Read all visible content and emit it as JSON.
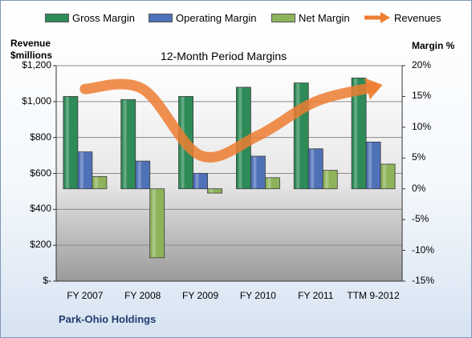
{
  "legend": [
    {
      "label": "Gross Margin",
      "color": "#2e8b57",
      "kind": "bar"
    },
    {
      "label": "Operating Margin",
      "color": "#4f71b8",
      "kind": "bar"
    },
    {
      "label": "Net Margin",
      "color": "#8eb35a",
      "kind": "bar"
    },
    {
      "label": "Revenues",
      "color": "#ed7d31",
      "kind": "arrow"
    }
  ],
  "chart_data": {
    "type": "bar",
    "title": "12-Month Period Margins",
    "left_axis": {
      "title_line1": "Revenue",
      "title_line2": "$millions",
      "ylim": [
        0,
        1200
      ],
      "ticks": [
        "$1,200",
        "$1,000",
        "$800",
        "$600",
        "$400",
        "$200",
        "$-"
      ]
    },
    "right_axis": {
      "title": "Margin %",
      "ylim": [
        -15,
        20
      ],
      "ticks": [
        "20%",
        "15%",
        "10%",
        "5%",
        "0%",
        "-5%",
        "-10%",
        "-15%"
      ]
    },
    "categories": [
      "FY 2007",
      "FY 2008",
      "FY 2009",
      "FY 2010",
      "FY 2011",
      "TTM 9-2012"
    ],
    "series": [
      {
        "name": "Gross Margin",
        "axis": "right",
        "color": "#2e8b57",
        "values": [
          15.0,
          14.5,
          15.0,
          16.5,
          17.2,
          18.0
        ]
      },
      {
        "name": "Operating Margin",
        "axis": "right",
        "color": "#4f71b8",
        "values": [
          6.0,
          4.5,
          2.5,
          5.3,
          6.5,
          7.6
        ]
      },
      {
        "name": "Net Margin",
        "axis": "right",
        "color": "#8eb35a",
        "values": [
          2.0,
          -11.2,
          -0.7,
          1.8,
          3.0,
          4.0
        ]
      },
      {
        "name": "Revenues",
        "axis": "left",
        "color": "#ed7d31",
        "values": [
          1070,
          1070,
          700,
          810,
          1000,
          1080
        ]
      }
    ],
    "grid": true
  },
  "company": "Park-Ohio Holdings"
}
